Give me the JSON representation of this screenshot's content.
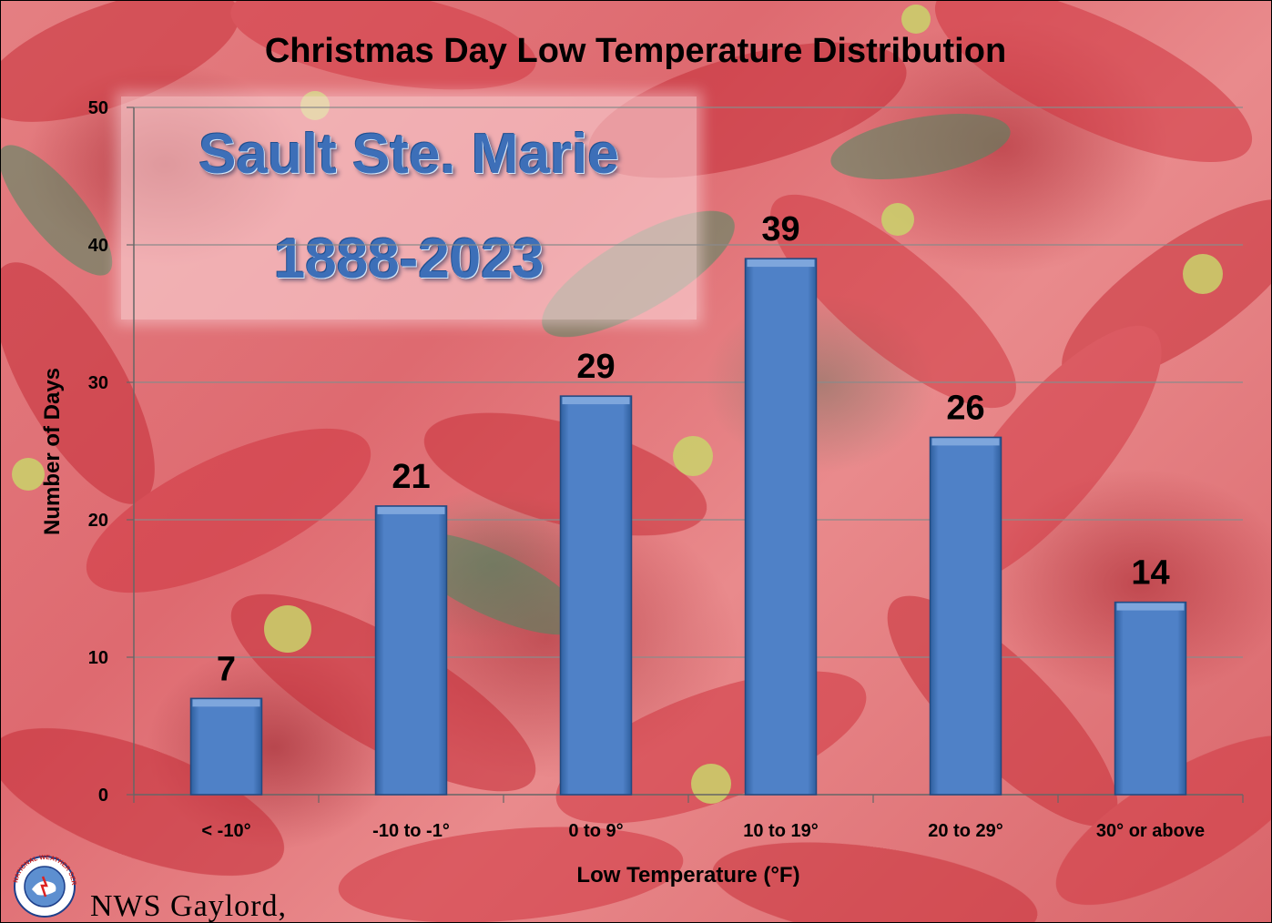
{
  "chart_data": {
    "type": "bar",
    "title": "Christmas Day Low Temperature Distribution",
    "categories": [
      "< -10°",
      "-10 to -1°",
      "0 to 9°",
      "10 to 19°",
      "20 to 29°",
      "30° or above"
    ],
    "values": [
      7,
      21,
      29,
      39,
      26,
      14
    ],
    "xlabel": "Low Temperature (°F)",
    "ylabel": "Number of Days",
    "ylim": [
      0,
      50
    ],
    "yticks": [
      0,
      10,
      20,
      30,
      40,
      50
    ],
    "grid": true,
    "bar_color": "#4f81c7",
    "data_labels": true
  },
  "annotation": {
    "station": "Sault Ste. Marie",
    "years": "1888-2023"
  },
  "footer": {
    "logo_text": "NATIONAL WEATHER SERVICE",
    "credit": "NWS Gaylord,"
  }
}
